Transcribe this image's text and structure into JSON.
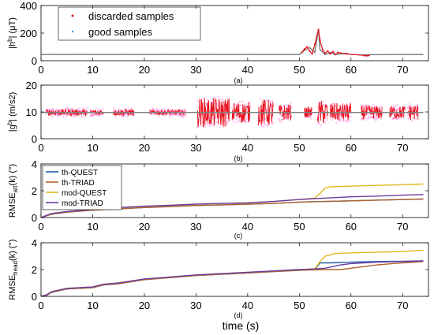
{
  "figure": {
    "xlabel": "time (s)"
  },
  "chart_data": [
    {
      "type": "scatter",
      "panel": "(a)",
      "ylabel": "|h",
      "ylabel_sup": "b",
      "ylabel_tail": "| (μT)",
      "xlim": [
        0,
        75
      ],
      "ylim": [
        0,
        400
      ],
      "xticks": [
        0,
        10,
        20,
        30,
        40,
        50,
        60,
        70
      ],
      "yticks": [
        0,
        200,
        400
      ],
      "legend": "top-left",
      "series": [
        {
          "name": "good samples",
          "color": "#3f8fd8",
          "x": [
            0,
            10,
            20,
            30,
            40,
            50,
            51,
            52,
            53,
            53.7,
            54,
            55,
            56,
            57,
            58,
            59,
            60,
            62,
            65,
            70,
            74
          ],
          "y": [
            45,
            45,
            45,
            45,
            45,
            45,
            75,
            95,
            60,
            225,
            80,
            45,
            60,
            45,
            50,
            55,
            45,
            42,
            44,
            45,
            45
          ]
        },
        {
          "name": "discarded samples",
          "color": "#e8141e",
          "x": [
            50.5,
            51,
            51.5,
            52,
            52.5,
            53,
            53.4,
            53.7,
            54,
            54.5,
            55,
            55.5,
            56,
            56.5,
            57,
            57.5,
            58,
            59,
            62.5,
            63,
            63.5
          ],
          "y": [
            60,
            85,
            100,
            70,
            50,
            120,
            180,
            225,
            150,
            80,
            55,
            70,
            50,
            65,
            45,
            60,
            55,
            50,
            38,
            35,
            38
          ]
        }
      ]
    },
    {
      "type": "scatter",
      "panel": "(b)",
      "ylabel": "|g",
      "ylabel_sup": "b",
      "ylabel_tail": "| (m/s2)",
      "xlim": [
        0,
        75
      ],
      "ylim": [
        0,
        20
      ],
      "xticks": [
        0,
        10,
        20,
        30,
        40,
        50,
        60,
        70
      ],
      "yticks": [
        0,
        10,
        20
      ],
      "baseline": 9.8,
      "active_segments": [
        [
          1,
          9,
          1.2
        ],
        [
          9.5,
          12,
          1.0
        ],
        [
          14,
          18,
          1.2
        ],
        [
          21,
          28,
          1.0
        ],
        [
          30.3,
          36.5,
          5.5
        ],
        [
          37,
          40.5,
          4.0
        ],
        [
          42,
          45,
          5.0
        ],
        [
          46,
          48.5,
          3.0
        ],
        [
          51,
          52.5,
          2.0
        ],
        [
          53.5,
          55.5,
          4.5
        ],
        [
          56,
          60,
          3.5
        ],
        [
          62,
          66,
          2.5
        ],
        [
          67.5,
          70.5,
          2.5
        ],
        [
          71,
          73,
          3.0
        ]
      ],
      "colors": {
        "good": "#808080",
        "discarded": "#e8141e",
        "halo": "#ff66cc"
      }
    },
    {
      "type": "line",
      "panel": "(c)",
      "ylabel": "RMSE",
      "ylabel_sub": "att",
      "ylabel_tail": "(k) (°)",
      "xlim": [
        0,
        75
      ],
      "ylim": [
        0,
        4
      ],
      "xticks": [
        0,
        10,
        20,
        30,
        40,
        50,
        60,
        70
      ],
      "yticks": [
        0,
        2,
        4
      ],
      "legend": "top-left",
      "series": [
        {
          "name": "th-QUEST",
          "color": "#1f5fa8",
          "x": [
            0,
            2,
            5,
            10,
            15,
            20,
            25,
            30,
            35,
            40,
            45,
            50,
            55,
            60,
            65,
            70,
            74
          ],
          "y": [
            0,
            0.25,
            0.4,
            0.55,
            0.65,
            0.75,
            0.82,
            0.9,
            0.95,
            1.0,
            1.05,
            1.15,
            1.2,
            1.25,
            1.3,
            1.35,
            1.38
          ]
        },
        {
          "name": "th-TRIAD",
          "color": "#b0622c",
          "x": [
            0,
            2,
            5,
            10,
            15,
            20,
            25,
            30,
            35,
            40,
            45,
            50,
            55,
            60,
            65,
            70,
            74
          ],
          "y": [
            0,
            0.25,
            0.4,
            0.55,
            0.65,
            0.75,
            0.82,
            0.9,
            0.95,
            1.0,
            1.05,
            1.15,
            1.2,
            1.25,
            1.3,
            1.35,
            1.38
          ]
        },
        {
          "name": "mod-QUEST",
          "color": "#e0b81e",
          "x": [
            0,
            2,
            5,
            10,
            15,
            20,
            25,
            30,
            35,
            40,
            45,
            50,
            53,
            54,
            55,
            56,
            60,
            65,
            70,
            74
          ],
          "y": [
            0,
            0.3,
            0.45,
            0.62,
            0.75,
            0.85,
            0.92,
            1.0,
            1.05,
            1.1,
            1.2,
            1.35,
            1.45,
            1.8,
            2.2,
            2.3,
            2.35,
            2.4,
            2.45,
            2.5
          ]
        },
        {
          "name": "mod-TRIAD",
          "color": "#6a3aa3",
          "x": [
            0,
            2,
            5,
            10,
            15,
            20,
            25,
            30,
            35,
            40,
            45,
            50,
            55,
            60,
            65,
            70,
            74
          ],
          "y": [
            0,
            0.3,
            0.45,
            0.62,
            0.75,
            0.85,
            0.92,
            1.0,
            1.05,
            1.1,
            1.2,
            1.35,
            1.45,
            1.55,
            1.6,
            1.67,
            1.72
          ]
        }
      ]
    },
    {
      "type": "line",
      "panel": "(d)",
      "ylabel": "RMSE",
      "ylabel_sub": "head",
      "ylabel_tail": "(k) (°)",
      "xlim": [
        0,
        75
      ],
      "ylim": [
        0,
        4
      ],
      "xticks": [
        0,
        10,
        20,
        30,
        40,
        50,
        60,
        70
      ],
      "yticks": [
        0,
        2,
        4
      ],
      "series": [
        {
          "name": "th-QUEST",
          "color": "#1f5fa8",
          "x": [
            0,
            1,
            2,
            5,
            10,
            12,
            15,
            20,
            25,
            30,
            35,
            40,
            45,
            50,
            53,
            54,
            56,
            60,
            65,
            70,
            74
          ],
          "y": [
            0,
            0.05,
            0.3,
            0.55,
            0.65,
            0.85,
            0.95,
            1.25,
            1.4,
            1.55,
            1.65,
            1.75,
            1.85,
            1.95,
            2.0,
            2.5,
            2.5,
            2.55,
            2.6,
            2.62,
            2.65
          ]
        },
        {
          "name": "th-TRIAD",
          "color": "#b0622c",
          "x": [
            0,
            1,
            2,
            5,
            10,
            12,
            15,
            20,
            25,
            30,
            35,
            40,
            45,
            50,
            55,
            58,
            60,
            63,
            65,
            70,
            74
          ],
          "y": [
            0,
            0.05,
            0.3,
            0.55,
            0.65,
            0.85,
            0.95,
            1.25,
            1.4,
            1.55,
            1.65,
            1.75,
            1.85,
            1.95,
            2.0,
            2.0,
            2.1,
            2.25,
            2.35,
            2.5,
            2.6
          ]
        },
        {
          "name": "mod-QUEST",
          "color": "#e0b81e",
          "x": [
            0,
            1,
            2,
            5,
            10,
            12,
            15,
            20,
            25,
            30,
            35,
            40,
            45,
            50,
            53,
            54,
            55,
            57,
            60,
            65,
            70,
            74
          ],
          "y": [
            0,
            0.1,
            0.35,
            0.6,
            0.7,
            0.9,
            1.0,
            1.3,
            1.45,
            1.6,
            1.7,
            1.8,
            1.9,
            2.0,
            2.05,
            2.6,
            3.0,
            3.2,
            3.25,
            3.3,
            3.35,
            3.45
          ]
        },
        {
          "name": "mod-TRIAD",
          "color": "#6a3aa3",
          "x": [
            0,
            1,
            2,
            5,
            10,
            12,
            15,
            20,
            25,
            30,
            35,
            40,
            45,
            50,
            53,
            55,
            58,
            60,
            65,
            70,
            74
          ],
          "y": [
            0,
            0.1,
            0.35,
            0.6,
            0.7,
            0.9,
            1.0,
            1.3,
            1.45,
            1.6,
            1.7,
            1.8,
            1.9,
            2.0,
            2.05,
            2.1,
            2.35,
            2.45,
            2.55,
            2.6,
            2.65
          ]
        }
      ]
    }
  ]
}
